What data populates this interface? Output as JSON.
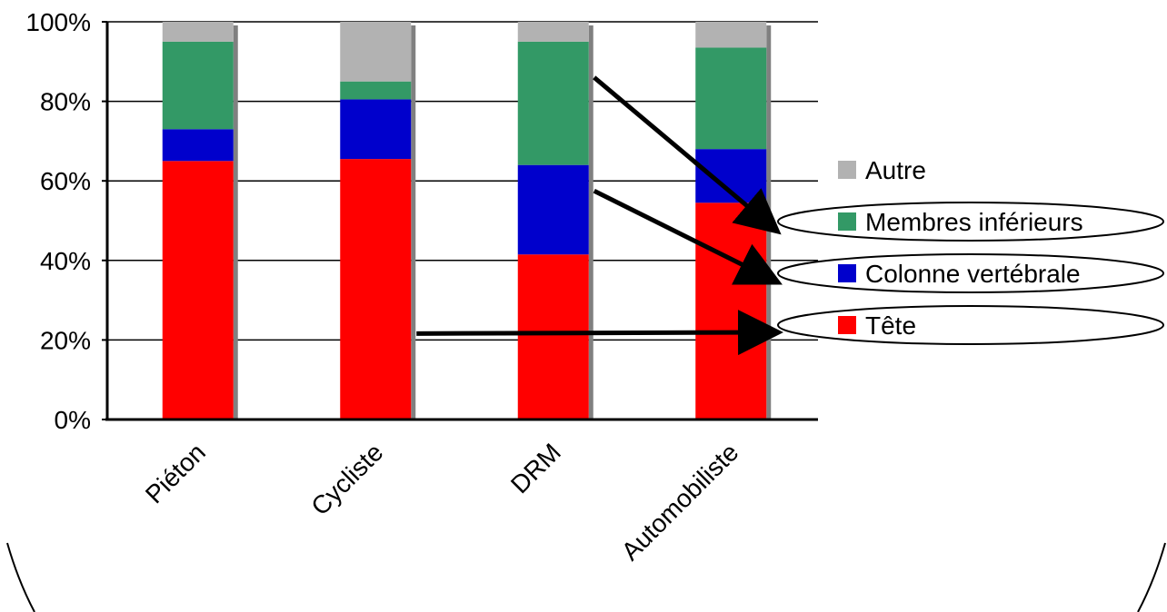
{
  "chart_data": {
    "type": "bar",
    "stacked": true,
    "percent": true,
    "categories": [
      "Piéton",
      "Cycliste",
      "DRM",
      "Automobiliste"
    ],
    "y_ticks": [
      "0%",
      "20%",
      "40%",
      "60%",
      "80%",
      "100%"
    ],
    "ylim": [
      0,
      100
    ],
    "grid": true,
    "legend_position": "right",
    "series": [
      {
        "name": "Tête",
        "color": "#ff0000",
        "values": [
          65,
          65.5,
          41.5,
          54.5
        ]
      },
      {
        "name": "Colonne vertébrale",
        "color": "#0000cc",
        "values": [
          8,
          15,
          22.5,
          13.5
        ]
      },
      {
        "name": "Membres inférieurs",
        "color": "#339966",
        "values": [
          22,
          4.5,
          31,
          25.5
        ]
      },
      {
        "name": "Autre",
        "color": "#b2b2b2",
        "values": [
          5,
          15,
          5,
          6.5
        ]
      }
    ],
    "legend_order": [
      "Autre",
      "Membres inférieurs",
      "Colonne vertébrale",
      "Tête"
    ],
    "highlighted_legend": [
      "Membres inférieurs",
      "Colonne vertébrale",
      "Tête"
    ],
    "annotation_arrows": [
      {
        "from_category": "DRM",
        "from_series": "Membres inférieurs",
        "to_legend": "Membres inférieurs"
      },
      {
        "from_category": "DRM",
        "from_series": "Colonne vertébrale",
        "to_legend": "Colonne vertébrale"
      },
      {
        "from_category": "Cycliste",
        "from_series": "Tête",
        "to_legend": "Tête"
      }
    ]
  }
}
